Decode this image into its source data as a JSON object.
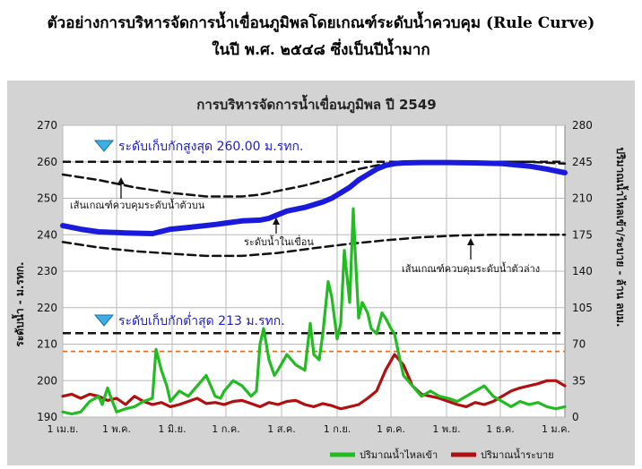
{
  "page_title_line1": "ตัวอย่างการบริหารจัดการน้ำเขื่อนภูมิพลโดยเกณฑ์ระดับน้ำควบคุม (Rule Curve)",
  "page_title_line2": "ในปี พ.ศ. ๒๕๔๘  ซึ่งเป็นปีน้ำมาก",
  "colors": {
    "storage_level": "#1a1adc",
    "inflow": "#22bb22",
    "release": "#b01010",
    "reference_line": "#e07020",
    "marker": "#3ab0e6",
    "label_blue": "#2020c0"
  },
  "chart_data": {
    "type": "line",
    "title": "การบริหารจัดการน้ำเขื่อนภูมิพล  ปี 2549",
    "ylabel_left": "ระดับน้ำ - ม.รทก.",
    "ylabel_right": "ปริมาณน้ำไหลเข้า/ระบาย - ล้าน ลบม.",
    "ylim_left": [
      190,
      270
    ],
    "yticks_left": [
      190,
      200,
      210,
      220,
      230,
      240,
      250,
      260,
      270
    ],
    "ylim_right": [
      0,
      280
    ],
    "yticks_right": [
      0,
      35,
      70,
      105,
      140,
      175,
      210,
      245,
      280
    ],
    "x_range_days": [
      0,
      280
    ],
    "xtick_days": [
      0,
      30,
      61,
      91,
      122,
      153,
      183,
      214,
      244,
      275
    ],
    "xtick_labels": [
      "1 เม.ย.",
      "1 พ.ค.",
      "1 มิ.ย.",
      "1 ก.ค.",
      "1 ส.ค.",
      "1 ก.ย.",
      "1 ต.ค.",
      "1 พ.ย.",
      "1 ธ.ค.",
      "1 ม.ค."
    ],
    "grid": true,
    "legend": "bottom-right",
    "legend_entries": [
      "ปริมาณน้ำไหลเข้า",
      "ปริมาณน้ำระบาย"
    ],
    "annotations": {
      "max_level": "ระดับเก็บกักสูงสุด 260.00 ม.รทก.",
      "min_level": "ระดับเก็บกักต่ำสุด 213 ม.รทก.",
      "upper_rule": "เส้นเกณฑ์ควบคุมระดับน้ำตัวบน",
      "lower_rule": "เส้นเกณฑ์ควบคุมระดับน้ำตัวล่าง",
      "storage": "ระดับน้ำในเขื่อน"
    },
    "reference_lines": {
      "max_level": 260,
      "min_level": 213,
      "orange_level": 208
    },
    "series": [
      {
        "key": "upper_rule",
        "axis": "left",
        "style": "dashed",
        "x": [
          0,
          20,
          40,
          60,
          80,
          100,
          110,
          120,
          135,
          150,
          165,
          180,
          200,
          230,
          260,
          280
        ],
        "y": [
          256.5,
          255,
          253,
          251.5,
          250.5,
          250.5,
          251,
          252,
          253.5,
          255.5,
          258,
          259.5,
          260,
          260,
          260,
          259.5
        ]
      },
      {
        "key": "lower_rule",
        "axis": "left",
        "style": "dashed",
        "x": [
          0,
          20,
          40,
          60,
          80,
          100,
          120,
          140,
          160,
          180,
          200,
          220,
          240,
          260,
          280
        ],
        "y": [
          238,
          236.5,
          235.5,
          234.8,
          234.2,
          234.2,
          235,
          236.3,
          237.5,
          238.5,
          239.3,
          239.8,
          240,
          240,
          240
        ]
      },
      {
        "key": "storage",
        "axis": "left",
        "style": "solid",
        "x": [
          0,
          10,
          20,
          35,
          50,
          60,
          70,
          85,
          100,
          110,
          115,
          120,
          125,
          135,
          145,
          150,
          155,
          160,
          165,
          170,
          175,
          180,
          185,
          190,
          200,
          215,
          230,
          245,
          260,
          270,
          280
        ],
        "y": [
          242.5,
          241.5,
          240.8,
          240.5,
          240.3,
          241.5,
          242,
          242.8,
          243.8,
          244,
          244.5,
          245.5,
          246.5,
          247.5,
          249,
          250,
          251.5,
          253,
          255,
          256.5,
          258,
          259,
          259.5,
          259.7,
          259.8,
          259.8,
          259.7,
          259.5,
          258.8,
          258,
          257
        ]
      },
      {
        "name": "ปริมาณน้ำไหลเข้า",
        "key": "inflow",
        "axis": "right",
        "style": "solid",
        "x": [
          0,
          5,
          10,
          15,
          20,
          22,
          25,
          27,
          30,
          35,
          40,
          45,
          50,
          52,
          55,
          58,
          60,
          65,
          70,
          75,
          80,
          85,
          88,
          90,
          95,
          100,
          105,
          108,
          110,
          112,
          115,
          118,
          120,
          125,
          130,
          135,
          138,
          140,
          143,
          145,
          148,
          150,
          153,
          155,
          157,
          160,
          162,
          163,
          165,
          167,
          170,
          172,
          175,
          178,
          180,
          183,
          185,
          188,
          190,
          195,
          200,
          205,
          210,
          215,
          220,
          225,
          230,
          235,
          240,
          245,
          250,
          255,
          260,
          265,
          270,
          275,
          280
        ],
        "y": [
          5,
          3,
          5,
          15,
          20,
          12,
          28,
          18,
          5,
          8,
          10,
          15,
          18,
          65,
          45,
          30,
          15,
          25,
          20,
          30,
          40,
          20,
          18,
          25,
          35,
          30,
          20,
          25,
          70,
          85,
          55,
          40,
          45,
          60,
          50,
          45,
          90,
          60,
          55,
          80,
          130,
          115,
          75,
          90,
          160,
          110,
          200,
          160,
          95,
          110,
          100,
          85,
          80,
          100,
          95,
          85,
          80,
          55,
          40,
          30,
          20,
          25,
          20,
          18,
          15,
          20,
          25,
          30,
          20,
          15,
          10,
          15,
          12,
          14,
          10,
          8,
          10
        ]
      },
      {
        "name": "ปริมาณน้ำระบาย",
        "key": "release",
        "axis": "right",
        "style": "solid",
        "x": [
          0,
          5,
          10,
          15,
          20,
          25,
          30,
          35,
          40,
          45,
          50,
          55,
          60,
          65,
          70,
          75,
          80,
          85,
          90,
          95,
          100,
          105,
          110,
          115,
          120,
          125,
          130,
          135,
          140,
          145,
          150,
          155,
          160,
          165,
          170,
          175,
          180,
          185,
          190,
          195,
          200,
          205,
          210,
          215,
          220,
          225,
          230,
          235,
          240,
          245,
          250,
          255,
          260,
          265,
          270,
          275,
          280
        ],
        "y": [
          20,
          22,
          18,
          22,
          20,
          16,
          18,
          12,
          20,
          15,
          12,
          14,
          10,
          12,
          15,
          18,
          13,
          14,
          12,
          15,
          16,
          13,
          10,
          14,
          12,
          15,
          16,
          12,
          10,
          13,
          11,
          8,
          10,
          12,
          18,
          25,
          45,
          60,
          50,
          30,
          22,
          20,
          18,
          15,
          12,
          10,
          14,
          12,
          15,
          20,
          25,
          28,
          30,
          32,
          35,
          35,
          30
        ]
      }
    ]
  }
}
